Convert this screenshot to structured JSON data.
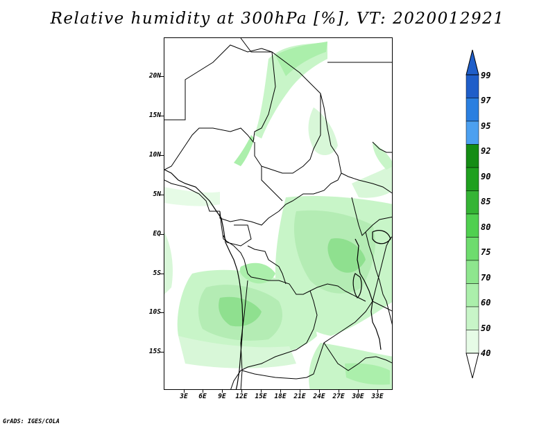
{
  "title": "Relative humidity at 300hPa [%], VT: 2020012921",
  "footer": "GrADS: IGES/COLA",
  "lat_labels": [
    "20N",
    "15N",
    "10N",
    "5N",
    "EQ",
    "5S",
    "10S",
    "15S"
  ],
  "lon_labels": [
    "3E",
    "6E",
    "9E",
    "12E",
    "15E",
    "18E",
    "21E",
    "24E",
    "27E",
    "30E",
    "33E"
  ],
  "colorbar": {
    "labels": [
      "99",
      "97",
      "95",
      "92",
      "90",
      "85",
      "80",
      "75",
      "70",
      "60",
      "50",
      "40"
    ],
    "colors": [
      "#1f5ec9",
      "#2a7fe0",
      "#4ca0f0",
      "#148c14",
      "#1fa01f",
      "#35b435",
      "#50d050",
      "#6edc6e",
      "#8ee68e",
      "#abefab",
      "#c8f5c8",
      "#e6fbe6"
    ]
  },
  "map": {
    "type": "relative humidity field map",
    "level": "300hPa",
    "valid_time": "2020012921",
    "units": "%",
    "colors": {
      "land_border": "#000000",
      "humid_light": "#d8f7d8",
      "humid_mid": "#b4ecb4",
      "humid_strong": "#8fe08f"
    }
  }
}
